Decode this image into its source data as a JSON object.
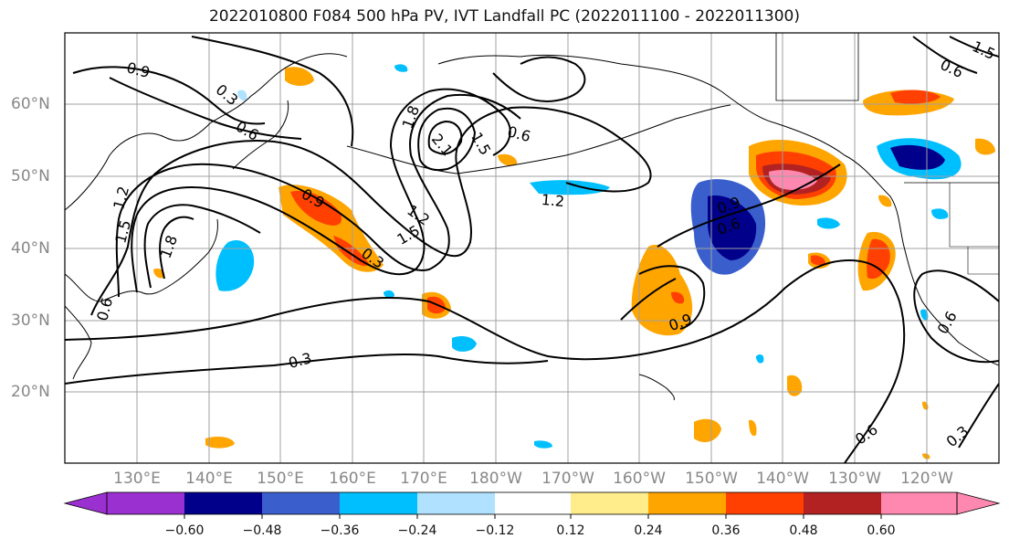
{
  "title": "2022010800 F084 500 hPa PV, IVT Landfall PC (2022011100 - 2022011300)",
  "latitude_labels": [
    "60°N",
    "50°N",
    "40°N",
    "30°N",
    "20°N"
  ],
  "longitude_labels": [
    "130°E",
    "140°E",
    "150°E",
    "160°E",
    "170°E",
    "180°W",
    "170°W",
    "160°W",
    "150°W",
    "140°W",
    "130°W",
    "120°W"
  ],
  "colorbar": {
    "tick_labels": [
      "−0.60",
      "−0.48",
      "−0.36",
      "−0.24",
      "−0.12",
      "0.12",
      "0.24",
      "0.36",
      "0.48",
      "0.60"
    ],
    "colors": [
      "#9b30d0",
      "#00008b",
      "#3a5fcd",
      "#00bfff",
      "#b0e2ff",
      "#ffffff",
      "#ffec8b",
      "#ffa500",
      "#ff4000",
      "#b22222",
      "#ff88b0"
    ]
  },
  "contour_labels": [
    "0.9",
    "0.3",
    "0.6",
    "1.2",
    "1.5",
    "1.8",
    "0.9",
    "1.2",
    "1.5",
    "2.1",
    "1.5",
    "1.8",
    "0.6",
    "1.2",
    "0.3",
    "0.6",
    "0.9",
    "0.6",
    "0.9",
    "0.3",
    "0.6",
    "0.6",
    "0.3",
    "0.6",
    "1.5"
  ]
}
